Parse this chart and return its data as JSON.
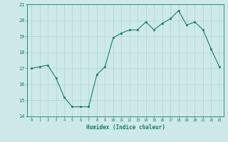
{
  "x": [
    0,
    1,
    2,
    3,
    4,
    5,
    6,
    7,
    8,
    9,
    10,
    11,
    12,
    13,
    14,
    15,
    16,
    17,
    18,
    19,
    20,
    21,
    22,
    23
  ],
  "y": [
    17.0,
    17.1,
    17.2,
    16.4,
    15.2,
    14.6,
    14.6,
    14.6,
    16.6,
    17.1,
    18.9,
    19.2,
    19.4,
    19.4,
    19.9,
    19.4,
    19.8,
    20.1,
    20.6,
    19.7,
    19.9,
    19.4,
    18.2,
    17.1
  ],
  "xlabel": "Humidex (Indice chaleur)",
  "ylim": [
    14,
    21
  ],
  "xlim": [
    -0.5,
    23.5
  ],
  "yticks": [
    14,
    15,
    16,
    17,
    18,
    19,
    20,
    21
  ],
  "xticks": [
    0,
    1,
    2,
    3,
    4,
    5,
    6,
    7,
    8,
    9,
    10,
    11,
    12,
    13,
    14,
    15,
    16,
    17,
    18,
    19,
    20,
    21,
    22,
    23
  ],
  "line_color": "#1a7a6e",
  "marker_color": "#1a7a6e",
  "bg_color": "#ceeae8",
  "grid_color": "#aed4d1",
  "tick_color": "#1a7a6e",
  "label_color": "#1a7a6e"
}
